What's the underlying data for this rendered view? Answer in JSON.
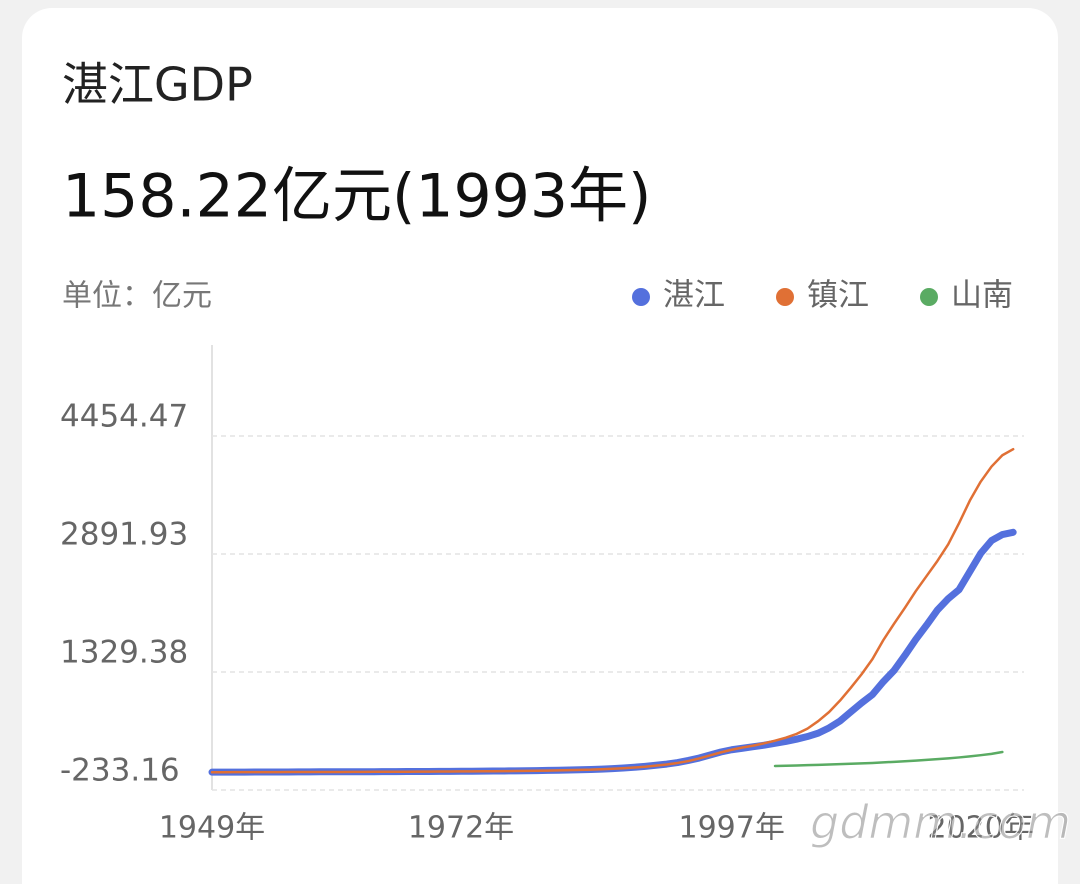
{
  "chart_data": {
    "type": "line",
    "title": "湛江GDP",
    "subtitle": "158.22亿元(1993年)",
    "unit_label": "单位：亿元",
    "watermark": "gdmm.com",
    "x": [
      1949,
      1950,
      1951,
      1952,
      1953,
      1954,
      1955,
      1956,
      1957,
      1958,
      1959,
      1960,
      1961,
      1962,
      1963,
      1964,
      1965,
      1966,
      1967,
      1968,
      1969,
      1970,
      1971,
      1972,
      1973,
      1974,
      1975,
      1976,
      1977,
      1978,
      1979,
      1980,
      1981,
      1982,
      1983,
      1984,
      1985,
      1986,
      1987,
      1988,
      1989,
      1990,
      1991,
      1992,
      1993,
      1994,
      1995,
      1996,
      1997,
      1998,
      1999,
      2000,
      2001,
      2002,
      2003,
      2004,
      2005,
      2006,
      2007,
      2008,
      2009,
      2010,
      2011,
      2012,
      2013,
      2014,
      2015,
      2016,
      2017,
      2018,
      2019,
      2020,
      2021,
      2022,
      2023
    ],
    "series": [
      {
        "name": "湛江",
        "color": "#5470dd",
        "values": [
          3,
          3,
          4,
          4,
          5,
          5,
          6,
          6,
          7,
          7,
          8,
          8,
          8,
          8,
          9,
          9,
          10,
          10,
          11,
          11,
          12,
          13,
          14,
          15,
          16,
          17,
          18,
          19,
          20,
          22,
          24,
          26,
          29,
          32,
          35,
          38,
          44,
          50,
          58,
          68,
          80,
          95,
          110,
          130,
          158.22,
          190,
          230,
          270,
          300,
          320,
          340,
          360,
          385,
          410,
          440,
          475,
          520,
          590,
          680,
          800,
          920,
          1030,
          1200,
          1350,
          1550,
          1760,
          1950,
          2150,
          2300,
          2420,
          2660,
          2900,
          3070,
          3150,
          3180
        ]
      },
      {
        "name": "镇江",
        "color": "#e07035",
        "values": [
          2,
          2,
          3,
          3,
          4,
          4,
          4,
          5,
          5,
          6,
          6,
          6,
          6,
          7,
          7,
          8,
          8,
          9,
          9,
          10,
          10,
          11,
          12,
          13,
          14,
          15,
          16,
          17,
          18,
          20,
          22,
          24,
          27,
          30,
          33,
          36,
          42,
          48,
          55,
          64,
          75,
          90,
          105,
          125,
          150,
          185,
          225,
          265,
          300,
          330,
          355,
          385,
          420,
          460,
          510,
          580,
          680,
          800,
          950,
          1120,
          1300,
          1500,
          1750,
          1970,
          2180,
          2400,
          2600,
          2800,
          3020,
          3300,
          3600,
          3850,
          4050,
          4200,
          4280
        ]
      },
      {
        "name": "山南",
        "color": "#5aab63",
        "values": [
          null,
          null,
          null,
          null,
          null,
          null,
          null,
          null,
          null,
          null,
          null,
          null,
          null,
          null,
          null,
          null,
          null,
          null,
          null,
          null,
          null,
          null,
          null,
          null,
          null,
          null,
          null,
          null,
          null,
          null,
          null,
          null,
          null,
          null,
          null,
          null,
          null,
          null,
          null,
          null,
          null,
          null,
          null,
          null,
          null,
          null,
          null,
          null,
          null,
          null,
          null,
          null,
          85,
          88,
          92,
          96,
          100,
          105,
          110,
          115,
          120,
          125,
          132,
          140,
          148,
          156,
          165,
          175,
          186,
          198,
          212,
          228,
          245,
          270,
          null
        ]
      }
    ],
    "xlim": [
      1949,
      2024
    ],
    "xticks": [
      {
        "value": 1949,
        "label": "1949年"
      },
      {
        "value": 1972,
        "label": "1972年"
      },
      {
        "value": 1997,
        "label": "1997年"
      },
      {
        "value": 2020,
        "label": "2020年"
      }
    ],
    "ylim": [
      -233.16,
      5660
    ],
    "yticks": [
      -233.16,
      1329.38,
      2891.93,
      4454.47
    ],
    "grid": true
  }
}
